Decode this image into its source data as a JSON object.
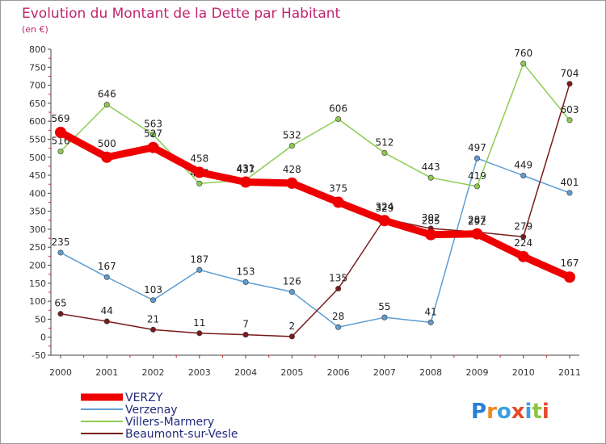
{
  "chart_data": {
    "type": "line",
    "title": "Evolution du Montant de la Dette par Habitant",
    "subtitle": "(en €)",
    "xlabel": "",
    "ylabel": "",
    "ylim": [
      -50,
      800
    ],
    "ytick_step": 50,
    "grid": false,
    "legend_position": "bottom-left",
    "categories": [
      "2000",
      "2001",
      "2002",
      "2003",
      "2004",
      "2005",
      "2006",
      "2007",
      "2008",
      "2009",
      "2010",
      "2011"
    ],
    "series": [
      {
        "name": "Verzenay",
        "color": "#5e9cd3",
        "values": [
          235,
          167,
          103,
          187,
          153,
          126,
          28,
          55,
          41,
          497,
          449,
          401
        ]
      },
      {
        "name": "Villers-Marmery",
        "color": "#8ccc4f",
        "values": [
          516,
          646,
          563,
          427,
          437,
          532,
          606,
          512,
          443,
          419,
          760,
          603
        ]
      },
      {
        "name": "Beaumont-sur-Vesle",
        "color": "#7a1a1a",
        "values": [
          65,
          44,
          21,
          11,
          7,
          2,
          135,
          329,
          302,
          292,
          279,
          704
        ]
      },
      {
        "name": "VERZY",
        "color": "#ee0000",
        "values": [
          569,
          500,
          527,
          458,
          431,
          428,
          375,
          324,
          285,
          287,
          224,
          167
        ],
        "emphasis": true
      }
    ]
  },
  "legend": {
    "items": [
      "VERZY",
      "Verzenay",
      "Villers-Marmery",
      "Beaumont-sur-Vesle"
    ]
  },
  "logo": {
    "text": "Proxiti",
    "letter_colors": [
      "#2a7fd4",
      "#f08a1c",
      "#3aa1e0",
      "#e84a2c",
      "#3aa1e0",
      "#8cc63f",
      "#e84a2c"
    ]
  }
}
